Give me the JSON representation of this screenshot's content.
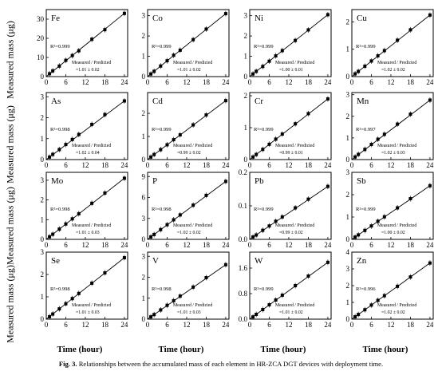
{
  "figure": {
    "ylabel": "Measured mass (μg)",
    "xlabel": "Time (hour)",
    "caption_label": "Fig. 3.",
    "caption_text": "Relationships between the accumulated mass of each element in HR-ZCA DGT devices with deployment time."
  },
  "chart_data": [
    {
      "type": "scatter",
      "element": "Fe",
      "r2": "R²=0.999",
      "ratio_label": "Measured / Predicted",
      "ratio": "=1.01 ± 0.02",
      "ylim": [
        0,
        35
      ],
      "yticks": [
        "0",
        "10",
        "20",
        "30"
      ],
      "ytick_values": [
        0,
        10,
        20,
        30
      ],
      "xticks": [
        "0",
        "6",
        "12",
        "18",
        "24"
      ],
      "x": [
        1,
        2,
        4,
        6,
        8,
        10,
        14,
        18,
        24
      ],
      "y": [
        1.5,
        3.0,
        5.5,
        8.5,
        11.0,
        13.5,
        19.5,
        24.5,
        33.0
      ],
      "fit_end": 33.0
    },
    {
      "type": "scatter",
      "element": "Co",
      "r2": "R²=0.999",
      "ratio_label": "Measured / Predicted",
      "ratio": "=1.01 ± 0.02",
      "ylim": [
        0,
        3.3
      ],
      "yticks": [
        "0",
        "1",
        "2",
        "3"
      ],
      "ytick_values": [
        0,
        1,
        2,
        3
      ],
      "xticks": [
        "0",
        "6",
        "12",
        "18",
        "24"
      ],
      "x": [
        1,
        2,
        4,
        6,
        8,
        10,
        14,
        18,
        24
      ],
      "y": [
        0.13,
        0.26,
        0.52,
        0.78,
        1.05,
        1.3,
        1.82,
        2.34,
        3.1
      ],
      "fit_end": 3.1
    },
    {
      "type": "scatter",
      "element": "Ni",
      "r2": "R²=0.999",
      "ratio_label": "Measured / Predicted",
      "ratio": "=1.00 ± 0.01",
      "ylim": [
        0,
        3.3
      ],
      "yticks": [
        "0",
        "1",
        "2",
        "3"
      ],
      "ytick_values": [
        0,
        1,
        2,
        3
      ],
      "xticks": [
        "0",
        "6",
        "12",
        "18",
        "24"
      ],
      "x": [
        1,
        2,
        4,
        6,
        8,
        10,
        14,
        18,
        24
      ],
      "y": [
        0.13,
        0.26,
        0.5,
        0.76,
        1.02,
        1.28,
        1.78,
        2.3,
        3.05
      ],
      "fit_end": 3.05
    },
    {
      "type": "scatter",
      "element": "Cu",
      "r2": "R²=0.999",
      "ratio_label": "Measured / Predicted",
      "ratio": "=1.02 ± 0.02",
      "ylim": [
        0,
        2.45
      ],
      "yticks": [
        "0",
        "1",
        "2"
      ],
      "ytick_values": [
        0,
        1,
        2
      ],
      "xticks": [
        "0",
        "6",
        "12",
        "18",
        "24"
      ],
      "x": [
        1,
        2,
        4,
        6,
        8,
        10,
        14,
        18,
        24
      ],
      "y": [
        0.1,
        0.19,
        0.38,
        0.57,
        0.76,
        0.95,
        1.33,
        1.71,
        2.25
      ],
      "fit_end": 2.25
    },
    {
      "type": "scatter",
      "element": "As",
      "r2": "R²=0.998",
      "ratio_label": "Measured / Predicted",
      "ratio": "=1.02 ± 0.04",
      "ylim": [
        0,
        3.2
      ],
      "yticks": [
        "0",
        "1",
        "2",
        "3"
      ],
      "ytick_values": [
        0,
        1,
        2,
        3
      ],
      "xticks": [
        "0",
        "6",
        "12",
        "18",
        "24"
      ],
      "x": [
        1,
        2,
        4,
        6,
        8,
        10,
        14,
        18,
        24
      ],
      "y": [
        0.12,
        0.25,
        0.48,
        0.72,
        0.96,
        1.2,
        1.68,
        2.15,
        2.8
      ],
      "fit_end": 2.8
    },
    {
      "type": "scatter",
      "element": "Cd",
      "r2": "R²=0.999",
      "ratio_label": "Measured / Predicted",
      "ratio": "=0.99 ± 0.02",
      "ylim": [
        0,
        2.9
      ],
      "yticks": [
        "0",
        "1",
        "2"
      ],
      "ytick_values": [
        0,
        1,
        2
      ],
      "xticks": [
        "0",
        "6",
        "12",
        "18",
        "24"
      ],
      "x": [
        1,
        2,
        4,
        6,
        8,
        10,
        14,
        18,
        24
      ],
      "y": [
        0.11,
        0.22,
        0.43,
        0.64,
        0.86,
        1.07,
        1.5,
        1.93,
        2.55
      ],
      "fit_end": 2.55
    },
    {
      "type": "scatter",
      "element": "Cr",
      "r2": "R²=0.999",
      "ratio_label": "Measured / Predicted",
      "ratio": "=0.99 ± 0.01",
      "ylim": [
        0,
        2.1
      ],
      "yticks": [
        "0",
        "1",
        "2"
      ],
      "ytick_values": [
        0,
        1,
        2
      ],
      "xticks": [
        "0",
        "6",
        "12",
        "18",
        "24"
      ],
      "x": [
        1,
        2,
        4,
        6,
        8,
        10,
        14,
        18,
        24
      ],
      "y": [
        0.08,
        0.16,
        0.32,
        0.48,
        0.64,
        0.8,
        1.12,
        1.44,
        1.9
      ],
      "fit_end": 1.9
    },
    {
      "type": "scatter",
      "element": "Mn",
      "r2": "R²=0.997",
      "ratio_label": "Measured / Predicted",
      "ratio": "=1.02 ± 0.03",
      "ylim": [
        0,
        3.1
      ],
      "yticks": [
        "0",
        "1",
        "2",
        "3"
      ],
      "ytick_values": [
        0,
        1,
        2,
        3
      ],
      "xticks": [
        "0",
        "6",
        "12",
        "18",
        "24"
      ],
      "x": [
        1,
        2,
        4,
        6,
        8,
        10,
        14,
        18,
        24
      ],
      "y": [
        0.12,
        0.24,
        0.47,
        0.7,
        0.94,
        1.17,
        1.64,
        2.1,
        2.75
      ],
      "fit_end": 2.75
    },
    {
      "type": "scatter",
      "element": "Mo",
      "r2": "R²=0.998",
      "ratio_label": "Measured / Predicted",
      "ratio": "=1.01 ± 0.03",
      "ylim": [
        0,
        3.4
      ],
      "yticks": [
        "0",
        "1",
        "2",
        "3"
      ],
      "ytick_values": [
        0,
        1,
        2,
        3
      ],
      "xticks": [
        "0",
        "6",
        "12",
        "18",
        "24"
      ],
      "x": [
        1,
        2,
        4,
        6,
        8,
        10,
        14,
        18,
        24
      ],
      "y": [
        0.13,
        0.26,
        0.52,
        0.78,
        1.04,
        1.3,
        1.83,
        2.35,
        3.1
      ],
      "fit_end": 3.1
    },
    {
      "type": "scatter",
      "element": "P",
      "r2": "R²=0.998",
      "ratio_label": "Measured / Predicted",
      "ratio": "=1.02 ± 0.02",
      "ylim": [
        0,
        9.6
      ],
      "yticks": [
        "0",
        "3",
        "6",
        "9"
      ],
      "ytick_values": [
        0,
        3,
        6,
        9
      ],
      "xticks": [
        "0",
        "6",
        "12",
        "18",
        "24"
      ],
      "x": [
        1,
        2,
        4,
        6,
        8,
        10,
        14,
        18,
        24
      ],
      "y": [
        0.35,
        0.7,
        1.4,
        2.1,
        2.8,
        3.5,
        4.9,
        6.3,
        8.3
      ],
      "fit_end": 8.3
    },
    {
      "type": "scatter",
      "element": "Pb",
      "r2": "R²=0.999",
      "ratio_label": "Measured / Predicted",
      "ratio": "=0.99 ± 0.02",
      "ylim": [
        0,
        0.2
      ],
      "yticks": [
        "0.0",
        "0.1",
        "0.2"
      ],
      "ytick_values": [
        0,
        0.1,
        0.2
      ],
      "xticks": [
        "0",
        "6",
        "12",
        "18",
        "24"
      ],
      "x": [
        1,
        2,
        4,
        6,
        8,
        10,
        14,
        18,
        24
      ],
      "y": [
        0.007,
        0.013,
        0.027,
        0.04,
        0.054,
        0.067,
        0.094,
        0.12,
        0.158
      ],
      "fit_end": 0.158
    },
    {
      "type": "scatter",
      "element": "Sb",
      "r2": "R²=0.999",
      "ratio_label": "Measured / Predicted",
      "ratio": "=1.00 ± 0.02",
      "ylim": [
        0,
        3.0
      ],
      "yticks": [
        "0",
        "1",
        "2",
        "3"
      ],
      "ytick_values": [
        0,
        1,
        2,
        3
      ],
      "xticks": [
        "0",
        "6",
        "12",
        "18",
        "24"
      ],
      "x": [
        1,
        2,
        4,
        6,
        8,
        10,
        14,
        18,
        24
      ],
      "y": [
        0.1,
        0.2,
        0.4,
        0.6,
        0.81,
        1.01,
        1.41,
        1.82,
        2.4
      ],
      "fit_end": 2.4
    },
    {
      "type": "scatter",
      "element": "Se",
      "r2": "R²=0.998",
      "ratio_label": "Measured / Predicted",
      "ratio": "=1.01 ± 0.03",
      "ylim": [
        0,
        3.0
      ],
      "yticks": [
        "0",
        "1",
        "2",
        "3"
      ],
      "ytick_values": [
        0,
        1,
        2,
        3
      ],
      "xticks": [
        "0",
        "6",
        "12",
        "18",
        "24"
      ],
      "x": [
        1,
        2,
        4,
        6,
        8,
        10,
        14,
        18,
        24
      ],
      "y": [
        0.11,
        0.23,
        0.46,
        0.69,
        0.92,
        1.15,
        1.61,
        2.07,
        2.75
      ],
      "fit_end": 2.75
    },
    {
      "type": "scatter",
      "element": "V",
      "r2": "R²=0.998",
      "ratio_label": "Measured / Predicted",
      "ratio": "=1.01 ± 0.03",
      "ylim": [
        0,
        3.2
      ],
      "yticks": [
        "0",
        "1",
        "2",
        "3"
      ],
      "ytick_values": [
        0,
        1,
        2,
        3
      ],
      "xticks": [
        "0",
        "6",
        "12",
        "18",
        "24"
      ],
      "x": [
        1,
        2,
        4,
        6,
        8,
        10,
        14,
        18,
        24
      ],
      "y": [
        0.11,
        0.22,
        0.44,
        0.66,
        0.88,
        1.1,
        1.53,
        1.98,
        2.6
      ],
      "fit_end": 2.6
    },
    {
      "type": "scatter",
      "element": "W",
      "r2": "R²=0.999",
      "ratio_label": "Measured / Predicted",
      "ratio": "=1.01 ± 0.02",
      "ylim": [
        0,
        2.1
      ],
      "yticks": [
        "0.0",
        "0.8",
        "1.6"
      ],
      "ytick_values": [
        0,
        0.8,
        1.6
      ],
      "xticks": [
        "0",
        "6",
        "12",
        "18",
        "24"
      ],
      "x": [
        1,
        2,
        4,
        6,
        8,
        10,
        14,
        18,
        24
      ],
      "y": [
        0.07,
        0.15,
        0.3,
        0.45,
        0.6,
        0.75,
        1.05,
        1.35,
        1.78
      ],
      "fit_end": 1.78
    },
    {
      "type": "scatter",
      "element": "Zn",
      "r2": "R²=0.996",
      "ratio_label": "Measured / Predicted",
      "ratio": "=1.02 ± 0.02",
      "ylim": [
        0,
        4.0
      ],
      "yticks": [
        "0",
        "1",
        "2",
        "3",
        "4"
      ],
      "ytick_values": [
        0,
        1,
        2,
        3,
        4
      ],
      "xticks": [
        "0",
        "6",
        "12",
        "18",
        "24"
      ],
      "x": [
        1,
        2,
        4,
        6,
        8,
        10,
        14,
        18,
        24
      ],
      "y": [
        0.14,
        0.28,
        0.56,
        0.84,
        1.12,
        1.4,
        1.96,
        2.52,
        3.35
      ],
      "fit_end": 3.35
    }
  ]
}
